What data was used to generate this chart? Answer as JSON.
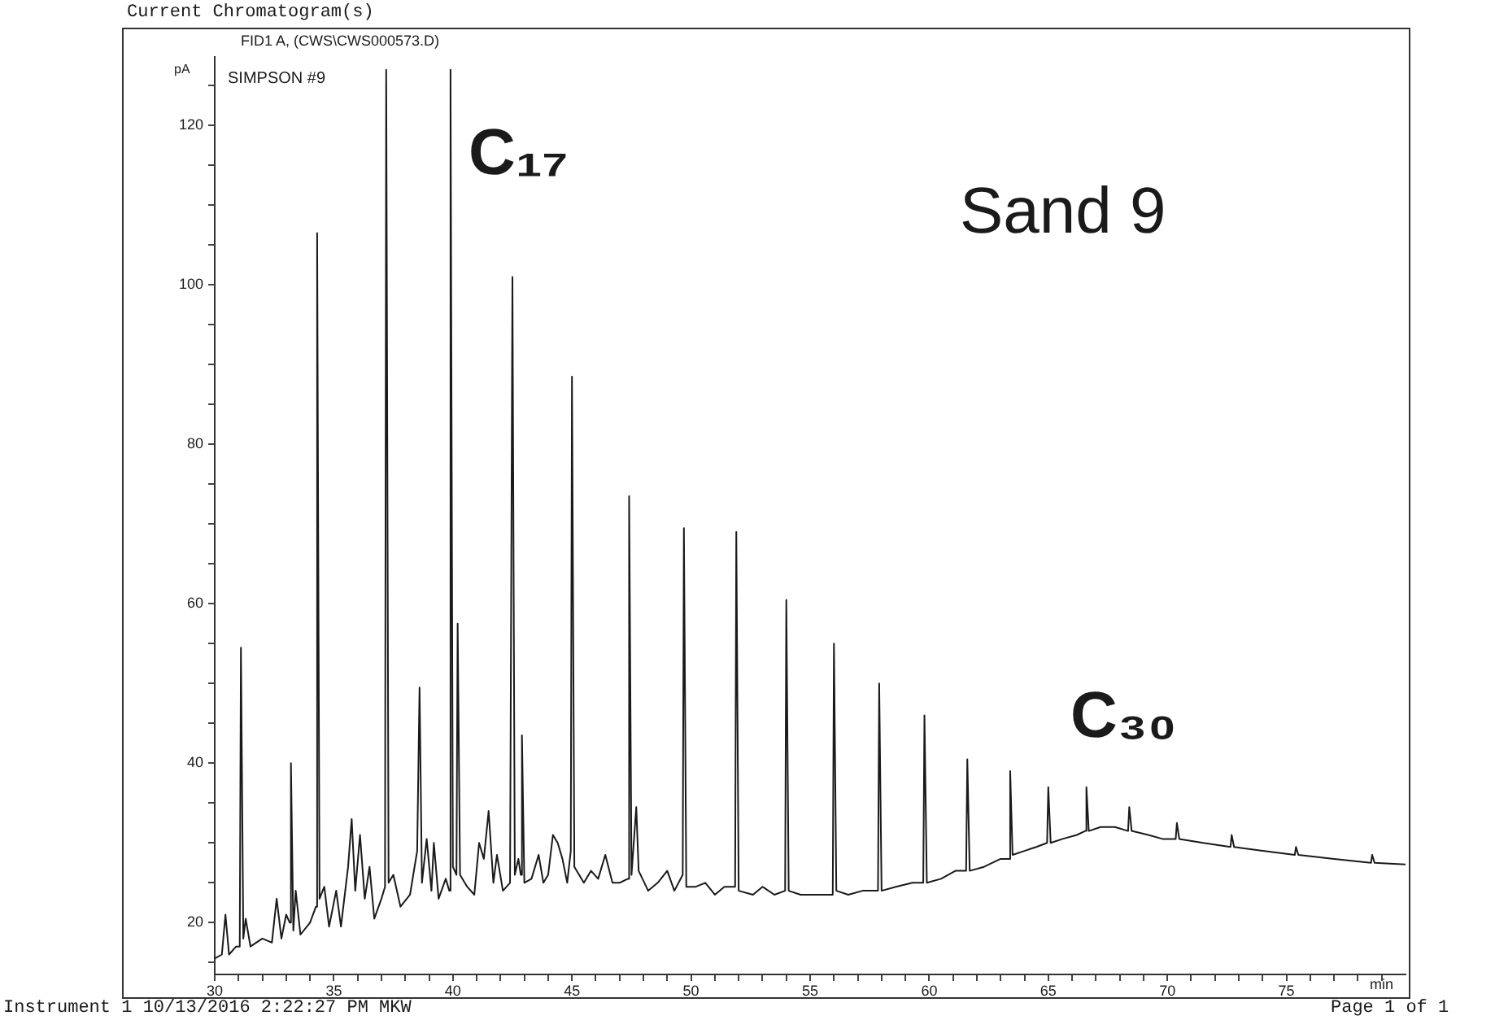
{
  "chart_data": {
    "type": "line",
    "title": "Current Chromatogram(s)",
    "subtitle": "FID1 A, (CWS\\CWS000573.D)",
    "xlabel": "min",
    "ylabel": "pA",
    "annotations": [
      "SIMPSON #9",
      "C₁₇",
      "Sand 9",
      "C₃₀",
      "Instrument 1 10/13/2016 2:22:27 PM MKW",
      "Page 1 of 1"
    ],
    "xlim": [
      30,
      80
    ],
    "ylim": [
      13.5,
      128.6
    ],
    "xticks": [
      30,
      {
        "value": 31,
        "label": null
      },
      {
        "value": 32,
        "label": null
      },
      {
        "value": 33,
        "label": null
      },
      {
        "value": 34,
        "label": null
      },
      35,
      {
        "value": 36,
        "label": null
      },
      {
        "value": 37,
        "label": null
      },
      {
        "value": 38,
        "label": null
      },
      {
        "value": 39,
        "label": null
      },
      40,
      {
        "value": 41,
        "label": null
      },
      {
        "value": 42,
        "label": null
      },
      {
        "value": 43,
        "label": null
      },
      {
        "value": 44,
        "label": null
      },
      45,
      {
        "value": 46,
        "label": null
      },
      {
        "value": 47,
        "label": null
      },
      {
        "value": 48,
        "label": null
      },
      {
        "value": 49,
        "label": null
      },
      50,
      {
        "value": 51,
        "label": null
      },
      {
        "value": 52,
        "label": null
      },
      {
        "value": 53,
        "label": null
      },
      {
        "value": 54,
        "label": null
      },
      55,
      {
        "value": 56,
        "label": null
      },
      {
        "value": 57,
        "label": null
      },
      {
        "value": 58,
        "label": null
      },
      {
        "value": 59,
        "label": null
      },
      60,
      {
        "value": 61,
        "label": null
      },
      {
        "value": 62,
        "label": null
      },
      {
        "value": 63,
        "label": null
      },
      {
        "value": 64,
        "label": null
      },
      65,
      {
        "value": 66,
        "label": null
      },
      {
        "value": 67,
        "label": null
      },
      {
        "value": 68,
        "label": null
      },
      {
        "value": 69,
        "label": null
      },
      70,
      {
        "value": 71,
        "label": null
      },
      {
        "value": 72,
        "label": null
      },
      {
        "value": 73,
        "label": null
      },
      {
        "value": 74,
        "label": null
      },
      75,
      {
        "value": 76,
        "label": null
      },
      {
        "value": 77,
        "label": null
      },
      {
        "value": 78,
        "label": null
      },
      {
        "value": 79,
        "label": null
      }
    ],
    "yticks": [
      {
        "value": 15,
        "label": null
      },
      20,
      {
        "value": 25,
        "label": null
      },
      {
        "value": 30,
        "label": null
      },
      {
        "value": 35,
        "label": null
      },
      40,
      {
        "value": 45,
        "label": null
      },
      {
        "value": 50,
        "label": null
      },
      {
        "value": 55,
        "label": null
      },
      60,
      {
        "value": 65,
        "label": null
      },
      {
        "value": 70,
        "label": null
      },
      {
        "value": 75,
        "label": null
      },
      80,
      {
        "value": 85,
        "label": null
      },
      {
        "value": 90,
        "label": null
      },
      {
        "value": 95,
        "label": null
      },
      100,
      {
        "value": 105,
        "label": null
      },
      {
        "value": 110,
        "label": null
      },
      {
        "value": 115,
        "label": null
      },
      120,
      {
        "value": 125,
        "label": null
      }
    ],
    "marker": "none",
    "line_style": "solid",
    "series": [
      {
        "color": "#1a1a1a",
        "x": [
          30.0,
          30.3,
          30.45,
          30.6,
          30.9,
          31.05,
          31.1,
          31.2,
          31.3,
          31.5,
          32.0,
          32.4,
          32.6,
          32.8,
          33.0,
          33.15,
          33.2,
          33.3,
          33.4,
          33.6,
          34.0,
          34.25,
          34.3,
          34.4,
          34.6,
          34.8,
          35.1,
          35.3,
          35.6,
          35.75,
          35.9,
          36.1,
          36.3,
          36.5,
          36.7,
          37.0,
          37.15,
          37.2,
          37.3,
          37.5,
          37.8,
          38.2,
          38.5,
          38.6,
          38.7,
          38.9,
          39.1,
          39.2,
          39.4,
          39.7,
          39.85,
          39.9,
          40.0,
          40.15,
          40.2,
          40.3,
          40.6,
          40.9,
          41.1,
          41.3,
          41.5,
          41.7,
          41.85,
          42.1,
          42.4,
          42.5,
          42.6,
          42.75,
          42.85,
          42.9,
          43.0,
          43.3,
          43.6,
          43.8,
          44.0,
          44.2,
          44.4,
          44.6,
          44.8,
          44.95,
          45.0,
          45.1,
          45.5,
          45.8,
          46.1,
          46.4,
          46.7,
          47.0,
          47.35,
          47.4,
          47.5,
          47.7,
          47.8,
          48.2,
          48.6,
          49.0,
          49.3,
          49.65,
          49.7,
          49.8,
          50.2,
          50.6,
          51.0,
          51.4,
          51.85,
          51.9,
          52.0,
          52.6,
          53.0,
          53.5,
          53.95,
          54.0,
          54.1,
          54.6,
          55.2,
          55.95,
          56.0,
          56.1,
          56.6,
          57.2,
          57.85,
          57.9,
          58.0,
          58.6,
          59.3,
          59.75,
          59.8,
          59.9,
          60.5,
          61.1,
          61.55,
          61.6,
          61.7,
          62.3,
          63.0,
          63.35,
          63.4,
          63.5,
          64.0,
          64.5,
          64.95,
          65.0,
          65.1,
          65.6,
          66.2,
          66.55,
          66.6,
          66.7,
          67.2,
          67.8,
          68.35,
          68.4,
          68.5,
          69.2,
          69.8,
          70.35,
          70.4,
          70.5,
          71.5,
          72.65,
          72.7,
          72.8,
          74.0,
          75.35,
          75.4,
          75.5,
          77.0,
          78.55,
          78.6,
          78.7,
          80.0
        ],
        "values": [
          15.5,
          16,
          21,
          16,
          17,
          17,
          54.5,
          18,
          20.5,
          17,
          18,
          17.5,
          23,
          18,
          21,
          20,
          40,
          19,
          24,
          18.5,
          20,
          22,
          106.5,
          23,
          24.5,
          19.5,
          24,
          19.5,
          27,
          33,
          24,
          31,
          23,
          27,
          20.5,
          23,
          24.5,
          127,
          25,
          26,
          22,
          23.5,
          29,
          49.5,
          25,
          30.5,
          24,
          30,
          23,
          25.5,
          24,
          127,
          27,
          26,
          57.5,
          26,
          24.5,
          23.5,
          30,
          28,
          34,
          25,
          28.5,
          24,
          25,
          101,
          26,
          28,
          26,
          43.5,
          25,
          25.5,
          28.5,
          25,
          26,
          31,
          30,
          28,
          25,
          29,
          88.5,
          27,
          25,
          26.5,
          25.5,
          28.5,
          25,
          25,
          25.5,
          73.5,
          26,
          34.5,
          26.5,
          24,
          25,
          26.5,
          24,
          26,
          69.5,
          24.5,
          24.5,
          25,
          23.5,
          24.5,
          24.5,
          69,
          24,
          23.5,
          24.5,
          23.5,
          24,
          60.5,
          24,
          23.5,
          23.5,
          23.5,
          55,
          24,
          23.5,
          24,
          24,
          50,
          24,
          24.5,
          25,
          25,
          46,
          25,
          25.5,
          26.5,
          26.5,
          40.5,
          26.5,
          27,
          28,
          28,
          39,
          28.5,
          29,
          29.5,
          30,
          37,
          30,
          30.5,
          31,
          31.5,
          37,
          31.5,
          32,
          32,
          31.5,
          34.5,
          31.5,
          31,
          30.5,
          30.5,
          32.5,
          30.5,
          30,
          29.5,
          31,
          29.5,
          29,
          28.5,
          29.5,
          28.5,
          28,
          27.5,
          28.5,
          27.5,
          27.3
        ]
      }
    ]
  }
}
